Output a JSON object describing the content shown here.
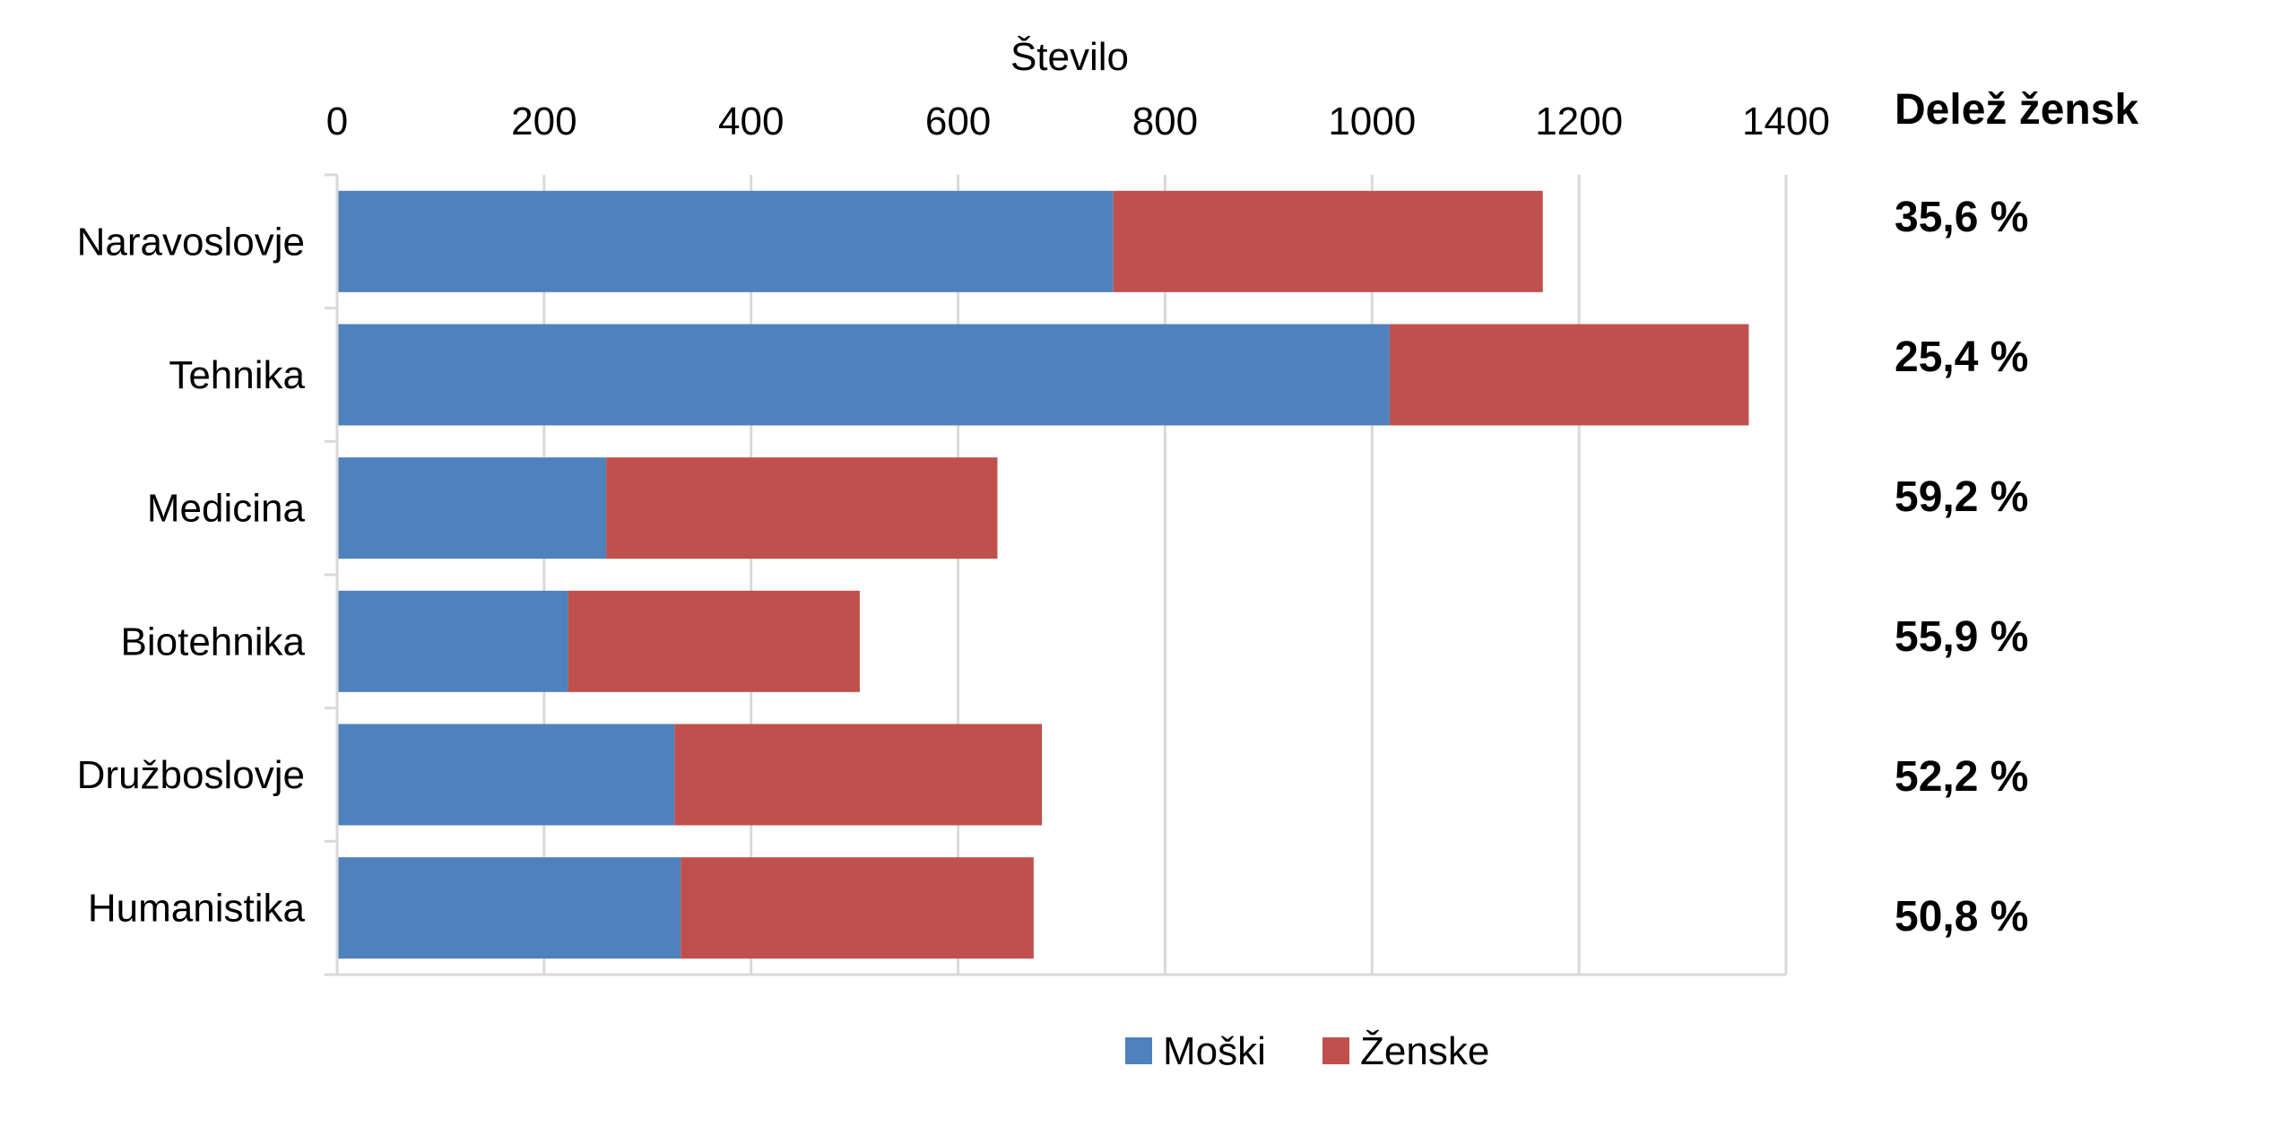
{
  "chart_data": {
    "type": "bar",
    "orientation": "horizontal",
    "stacked": true,
    "xlabel": "Število",
    "xlim": [
      0,
      1400
    ],
    "xticks": [
      "0",
      "200",
      "400",
      "600",
      "800",
      "1000",
      "1200",
      "1400"
    ],
    "x_axis_position": "top",
    "grid": true,
    "categories": [
      "Naravoslovje",
      "Tehnika",
      "Medicina",
      "Biotehnika",
      "Družboslovje",
      "Humanistika"
    ],
    "series": [
      {
        "name": "Moški",
        "color": "#4F81BD",
        "values": [
          750,
          1017,
          260,
          223,
          326,
          332
        ]
      },
      {
        "name": "Ženske",
        "color": "#C0504D",
        "values": [
          415,
          347,
          378,
          282,
          355,
          341
        ]
      }
    ],
    "legend_position": "bottom",
    "share_column": {
      "title": "Delež žensk",
      "values": [
        "35,6 %",
        "25,4 %",
        "59,2 %",
        "55,9 %",
        "52,2 %",
        "50,8 %"
      ]
    }
  }
}
